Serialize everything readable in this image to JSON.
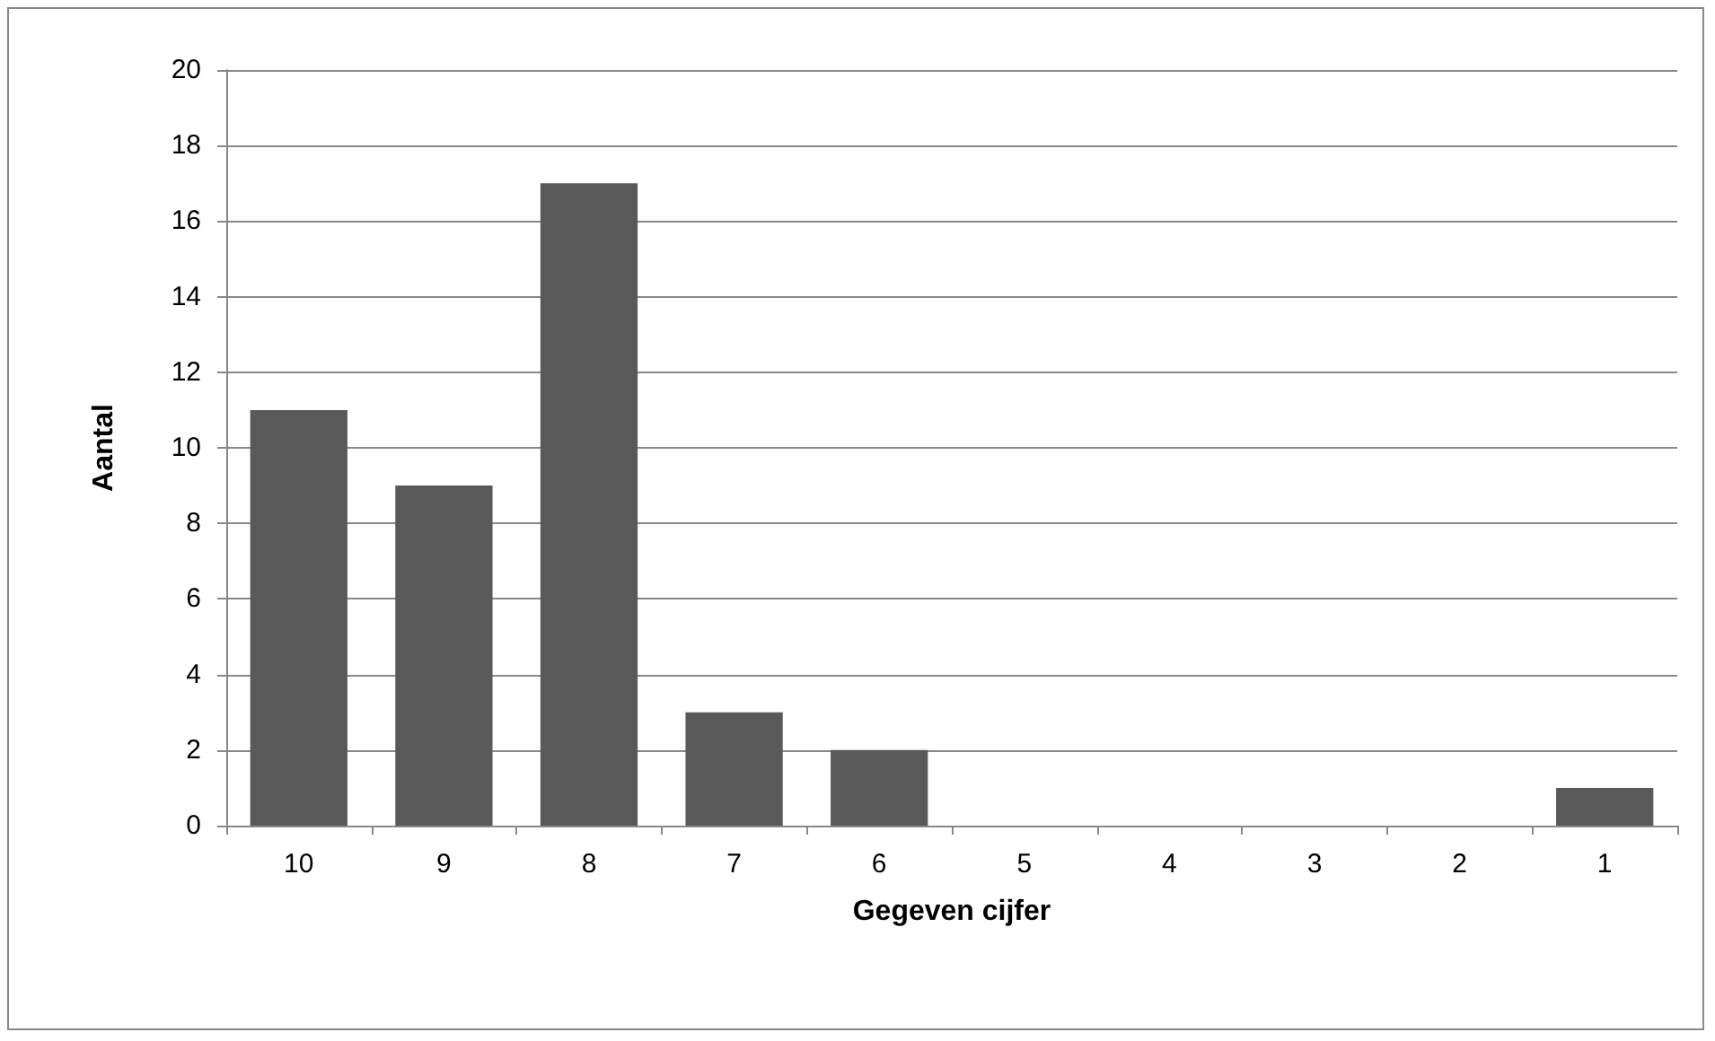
{
  "chart_data": {
    "type": "bar",
    "xlabel": "Gegeven cijfer",
    "ylabel": "Aantal",
    "categories": [
      "10",
      "9",
      "8",
      "7",
      "6",
      "5",
      "4",
      "3",
      "2",
      "1"
    ],
    "values": [
      11,
      9,
      17,
      3,
      2,
      0,
      0,
      0,
      0,
      1
    ],
    "color": "#595959",
    "ylim": [
      0,
      20
    ],
    "yticks": [
      0,
      2,
      4,
      6,
      8,
      10,
      12,
      14,
      16,
      18,
      20
    ],
    "grid": "y"
  }
}
